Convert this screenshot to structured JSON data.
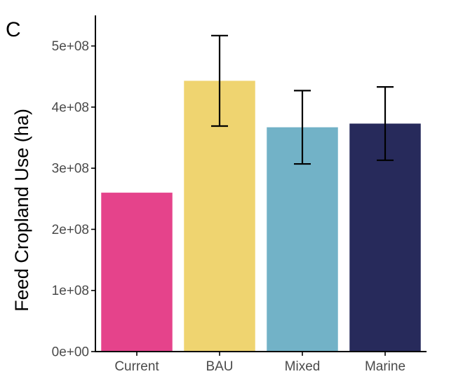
{
  "chart_data": {
    "type": "bar",
    "panel_label": "C",
    "title": "",
    "xlabel": "",
    "ylabel": "Feed Cropland Use (ha)",
    "categories": [
      "Current",
      "BAU",
      "Mixed",
      "Marine"
    ],
    "values": [
      260000000,
      443000000,
      367000000,
      373000000
    ],
    "error_low": [
      null,
      369000000,
      307000000,
      313000000
    ],
    "error_high": [
      null,
      517000000,
      427000000,
      433000000
    ],
    "colors": [
      "#e5438b",
      "#efd470",
      "#72b2c7",
      "#272a5b"
    ],
    "ylim": [
      0,
      550000000
    ],
    "yticks": [
      0,
      100000000,
      200000000,
      300000000,
      400000000,
      500000000
    ],
    "ytick_labels": [
      "0e+00",
      "1e+08",
      "2e+08",
      "3e+08",
      "4e+08",
      "5e+08"
    ],
    "grid": false,
    "legend": "none"
  }
}
